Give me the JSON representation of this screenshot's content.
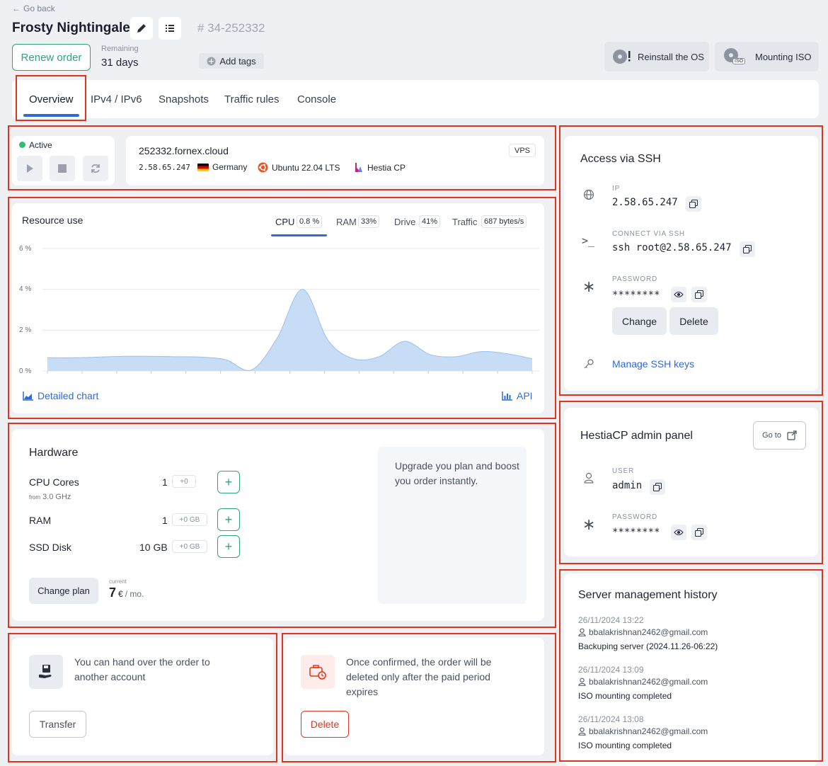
{
  "header": {
    "go_back": "Go back",
    "server_name": "Frosty Nightingale",
    "order_id": "# 34-252332",
    "renew_label": "Renew order",
    "remaining_label": "Remaining",
    "remaining_value": "31 days",
    "add_tags": "Add tags",
    "reinstall": "Reinstall the OS",
    "mount_iso": "Mounting ISO",
    "iso_badge": "ISO"
  },
  "tabs": [
    {
      "label": "Overview",
      "active": true
    },
    {
      "label": "IPv4 / IPv6"
    },
    {
      "label": "Snapshots"
    },
    {
      "label": "Traffic rules"
    },
    {
      "label": "Console"
    }
  ],
  "status": {
    "state": "Active",
    "state_color": "#2fbf71"
  },
  "server_info": {
    "hostname": "252332.fornex.cloud",
    "type_badge": "VPS",
    "ip": "2.58.65.247",
    "location": "Germany",
    "os": "Ubuntu 22.04 LTS",
    "panel": "Hestia CP"
  },
  "resource_use": {
    "title": "Resource use",
    "metrics": [
      {
        "label": "CPU",
        "value": "0.8 %",
        "active": true
      },
      {
        "label": "RAM",
        "value": "33%"
      },
      {
        "label": "Drive",
        "value": "41%"
      },
      {
        "label": "Traffic",
        "value": "687 bytes/s"
      }
    ],
    "detailed_chart": "Detailed chart",
    "api": "API"
  },
  "chart_data": {
    "type": "area",
    "ylabels": [
      "6 %",
      "4 %",
      "2 %",
      "0 %"
    ],
    "ylim": [
      0,
      6
    ],
    "grid": true,
    "series": [
      {
        "values": [
          0.65,
          0.65,
          0.68,
          0.72,
          0.72,
          0.7,
          0.68,
          0.55,
          0.05,
          1.6,
          4.0,
          1.5,
          0.6,
          0.7,
          1.45,
          0.8,
          0.7,
          0.95,
          0.85,
          0.6
        ],
        "color": "#c7ddf5"
      }
    ]
  },
  "hardware": {
    "title": "Hardware",
    "rows": [
      {
        "name": "CPU Cores",
        "sub_prefix": "from",
        "sub_value": "3.0 GHz",
        "value": "1",
        "delta": "+0"
      },
      {
        "name": "RAM",
        "value": "1",
        "delta": "+0 GB"
      },
      {
        "name": "SSD Disk",
        "value": "10 GB",
        "delta": "+0 GB"
      }
    ],
    "change_plan": "Change plan",
    "current_label": "current",
    "price": "7",
    "price_unit": "€",
    "price_period": "/ mo.",
    "upgrade_text": "Upgrade you plan and boost you order instantly."
  },
  "transfer": {
    "text": "You can hand over the order to another account",
    "button": "Transfer"
  },
  "delete_order": {
    "text": "Once confirmed, the order will be deleted only after the paid period expires",
    "button": "Delete"
  },
  "ssh": {
    "title": "Access via SSH",
    "ip_label": "IP",
    "ip_value": "2.58.65.247",
    "connect_label": "CONNECT VIA SSH",
    "connect_value": "ssh root@2.58.65.247",
    "password_label": "PASSWORD",
    "password_value": "********",
    "change_btn": "Change",
    "delete_btn": "Delete",
    "manage_keys": "Manage SSH keys"
  },
  "hestia": {
    "title": "HestiaCP admin panel",
    "goto": "Go to",
    "user_label": "USER",
    "user_value": "admin",
    "password_label": "PASSWORD",
    "password_value": "********"
  },
  "history": {
    "title": "Server management history",
    "items": [
      {
        "date": "26/11/2024 13:22",
        "user": "bbalakrishnan2462@gmail.com",
        "action": "Backuping server (2024.11.26-06:22)"
      },
      {
        "date": "26/11/2024 13:09",
        "user": "bbalakrishnan2462@gmail.com",
        "action": "ISO mounting completed"
      },
      {
        "date": "26/11/2024 13:08",
        "user": "bbalakrishnan2462@gmail.com",
        "action": "ISO mounting completed"
      }
    ]
  },
  "colors": {
    "accent": "#2e6bd6",
    "green": "#2fa37a",
    "danger": "#e0341d",
    "highlight": "#e0341d"
  }
}
